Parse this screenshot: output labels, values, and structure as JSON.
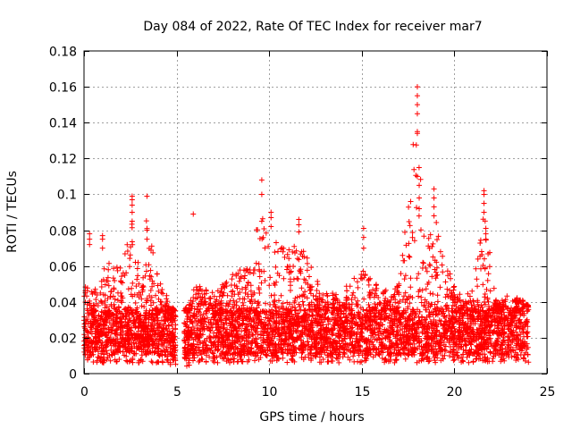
{
  "chart_data": {
    "type": "scatter",
    "title": "Day 084 of 2022, Rate Of TEC Index for receiver mar7",
    "xlabel": "GPS time / hours",
    "ylabel": "ROTI / TECUs",
    "xlim": [
      0,
      25
    ],
    "ylim": [
      0,
      0.18
    ],
    "xticks": [
      0,
      5,
      10,
      15,
      20,
      25
    ],
    "yticks": [
      0,
      0.02,
      0.04,
      0.06,
      0.08,
      0.1,
      0.12,
      0.14,
      0.16,
      0.18
    ],
    "xtick_labels": [
      "0",
      "5",
      "10",
      "15",
      "20",
      "25"
    ],
    "ytick_labels": [
      "0",
      "0.02",
      "0.04",
      "0.06",
      "0.08",
      "0.1",
      "0.12",
      "0.14",
      "0.16",
      "0.18"
    ],
    "grid": true,
    "marker": "+",
    "color": "#ff0000",
    "data_gap_hours": [
      4.95,
      5.4
    ],
    "series": [
      {
        "name": "ROTI",
        "x_range": [
          0,
          24
        ],
        "typical_range": [
          0.01,
          0.035
        ],
        "envelope": [
          [
            0,
            0.06
          ],
          [
            0.5,
            0.055
          ],
          [
            1,
            0.078
          ],
          [
            1.5,
            0.07
          ],
          [
            2,
            0.07
          ],
          [
            2.6,
            0.099
          ],
          [
            3,
            0.075
          ],
          [
            3.4,
            0.098
          ],
          [
            4,
            0.065
          ],
          [
            4.9,
            0.045
          ],
          [
            5.4,
            0.045
          ],
          [
            6,
            0.06
          ],
          [
            7,
            0.055
          ],
          [
            8,
            0.065
          ],
          [
            9,
            0.075
          ],
          [
            9.6,
            0.108
          ],
          [
            10.2,
            0.09
          ],
          [
            11,
            0.08
          ],
          [
            11.6,
            0.085
          ],
          [
            12.5,
            0.065
          ],
          [
            13,
            0.055
          ],
          [
            14,
            0.055
          ],
          [
            14.7,
            0.07
          ],
          [
            15.1,
            0.08
          ],
          [
            16,
            0.055
          ],
          [
            17,
            0.06
          ],
          [
            18,
            0.161
          ],
          [
            18.5,
            0.08
          ],
          [
            18.9,
            0.103
          ],
          [
            19.5,
            0.072
          ],
          [
            20,
            0.06
          ],
          [
            21,
            0.06
          ],
          [
            21.6,
            0.102
          ],
          [
            22.2,
            0.055
          ],
          [
            23,
            0.055
          ],
          [
            24,
            0.05
          ]
        ],
        "spikes": [
          {
            "x": 0.3,
            "values": [
              0.072,
              0.075,
              0.078
            ]
          },
          {
            "x": 1.0,
            "values": [
              0.07,
              0.075,
              0.077
            ]
          },
          {
            "x": 2.6,
            "values": [
              0.085,
              0.09,
              0.094,
              0.097,
              0.099
            ]
          },
          {
            "x": 3.4,
            "values": [
              0.075,
              0.08,
              0.099
            ]
          },
          {
            "x": 5.9,
            "values": [
              0.089
            ]
          },
          {
            "x": 9.6,
            "values": [
              0.085,
              0.1,
              0.108
            ]
          },
          {
            "x": 10.1,
            "values": [
              0.082,
              0.087,
              0.09
            ]
          },
          {
            "x": 11.6,
            "values": [
              0.079,
              0.083,
              0.086
            ]
          },
          {
            "x": 15.1,
            "values": [
              0.07,
              0.076,
              0.081
            ]
          },
          {
            "x": 18.0,
            "values": [
              0.11,
              0.134,
              0.135,
              0.145,
              0.15,
              0.155,
              0.16
            ]
          },
          {
            "x": 18.1,
            "values": [
              0.092,
              0.098,
              0.105
            ]
          },
          {
            "x": 18.9,
            "values": [
              0.088,
              0.093,
              0.098,
              0.103
            ]
          },
          {
            "x": 21.6,
            "values": [
              0.09,
              0.095,
              0.1,
              0.102
            ]
          },
          {
            "x": 21.7,
            "values": [
              0.075,
              0.078,
              0.081
            ]
          }
        ]
      }
    ]
  }
}
